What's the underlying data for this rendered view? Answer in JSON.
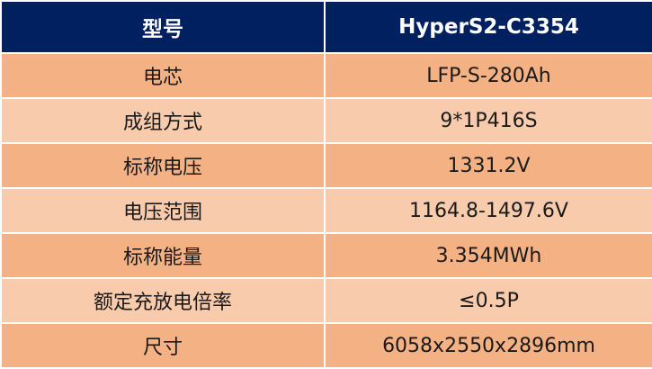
{
  "colors": {
    "header_bg": "#002060",
    "header_text": "#ffffff",
    "row_odd_bg": "#f4b184",
    "row_even_bg": "#f8cbad",
    "body_text": "#1a1a1a"
  },
  "table": {
    "header": {
      "label": "型号",
      "value": "HyperS2-C3354"
    },
    "rows": [
      {
        "label": "电芯",
        "value": "LFP-S-280Ah"
      },
      {
        "label": "成组方式",
        "value": "9*1P416S"
      },
      {
        "label": "标称电压",
        "value": "1331.2V"
      },
      {
        "label": "电压范围",
        "value": "1164.8-1497.6V"
      },
      {
        "label": "标称能量",
        "value": "3.354MWh"
      },
      {
        "label": "额定充放电倍率",
        "value": "≤0.5P"
      },
      {
        "label": "尺寸",
        "value": "6058x2550x2896mm"
      }
    ]
  }
}
